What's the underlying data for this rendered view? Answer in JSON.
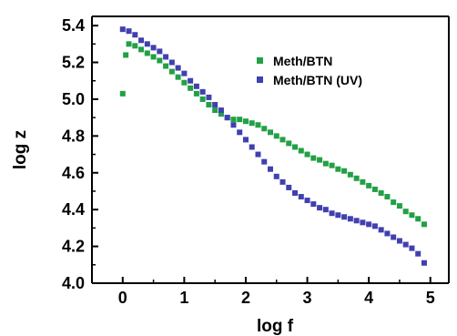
{
  "chart_data": {
    "type": "scatter",
    "title": "",
    "xlabel": "log f",
    "ylabel": "log z",
    "xlim": [
      -0.5,
      5.3
    ],
    "ylim": [
      4.0,
      5.45
    ],
    "xticks": [
      0,
      1,
      2,
      3,
      4,
      5
    ],
    "yticks": [
      4.0,
      4.2,
      4.4,
      4.6,
      4.8,
      5.0,
      5.2,
      5.4
    ],
    "xtick_labels": [
      "0",
      "1",
      "2",
      "3",
      "4",
      "5"
    ],
    "ytick_labels": [
      "4.0",
      "4.2",
      "4.4",
      "4.6",
      "4.8",
      "5.0",
      "5.2",
      "5.4"
    ],
    "legend_position": "top-right",
    "grid": false,
    "series": [
      {
        "name": "Meth/BTN",
        "color": "#22a045",
        "x": [
          0.0,
          0.05,
          0.1,
          0.2,
          0.3,
          0.4,
          0.5,
          0.6,
          0.7,
          0.8,
          0.9,
          1.0,
          1.1,
          1.2,
          1.3,
          1.4,
          1.5,
          1.6,
          1.7,
          1.8,
          1.9,
          2.0,
          2.1,
          2.2,
          2.3,
          2.4,
          2.5,
          2.6,
          2.7,
          2.8,
          2.9,
          3.0,
          3.1,
          3.2,
          3.3,
          3.4,
          3.5,
          3.6,
          3.7,
          3.8,
          3.9,
          4.0,
          4.1,
          4.2,
          4.3,
          4.4,
          4.5,
          4.6,
          4.7,
          4.8,
          4.9
        ],
        "y": [
          5.03,
          5.24,
          5.3,
          5.29,
          5.27,
          5.25,
          5.23,
          5.21,
          5.18,
          5.15,
          5.12,
          5.09,
          5.06,
          5.03,
          5.0,
          4.97,
          4.94,
          4.92,
          4.9,
          4.89,
          4.89,
          4.88,
          4.87,
          4.86,
          4.84,
          4.82,
          4.8,
          4.78,
          4.76,
          4.74,
          4.72,
          4.7,
          4.68,
          4.67,
          4.65,
          4.64,
          4.62,
          4.61,
          4.59,
          4.57,
          4.55,
          4.53,
          4.51,
          4.49,
          4.47,
          4.44,
          4.42,
          4.39,
          4.37,
          4.35,
          4.32
        ]
      },
      {
        "name": "Meth/BTN (UV)",
        "color": "#4040b0",
        "x": [
          0.0,
          0.1,
          0.2,
          0.3,
          0.4,
          0.5,
          0.6,
          0.7,
          0.8,
          0.9,
          1.0,
          1.1,
          1.2,
          1.3,
          1.4,
          1.5,
          1.6,
          1.7,
          1.8,
          1.9,
          2.0,
          2.1,
          2.2,
          2.3,
          2.4,
          2.5,
          2.6,
          2.7,
          2.8,
          2.9,
          3.0,
          3.1,
          3.2,
          3.3,
          3.4,
          3.5,
          3.6,
          3.7,
          3.8,
          3.9,
          4.0,
          4.1,
          4.2,
          4.3,
          4.4,
          4.5,
          4.6,
          4.7,
          4.8,
          4.9
        ],
        "y": [
          5.38,
          5.37,
          5.35,
          5.32,
          5.3,
          5.28,
          5.26,
          5.23,
          5.2,
          5.17,
          5.14,
          5.1,
          5.07,
          5.04,
          5.01,
          4.97,
          4.94,
          4.9,
          4.86,
          4.82,
          4.78,
          4.74,
          4.7,
          4.66,
          4.62,
          4.58,
          4.55,
          4.52,
          4.49,
          4.47,
          4.45,
          4.43,
          4.41,
          4.4,
          4.38,
          4.37,
          4.36,
          4.35,
          4.34,
          4.33,
          4.32,
          4.31,
          4.29,
          4.27,
          4.25,
          4.23,
          4.21,
          4.19,
          4.16,
          4.11
        ]
      }
    ]
  }
}
